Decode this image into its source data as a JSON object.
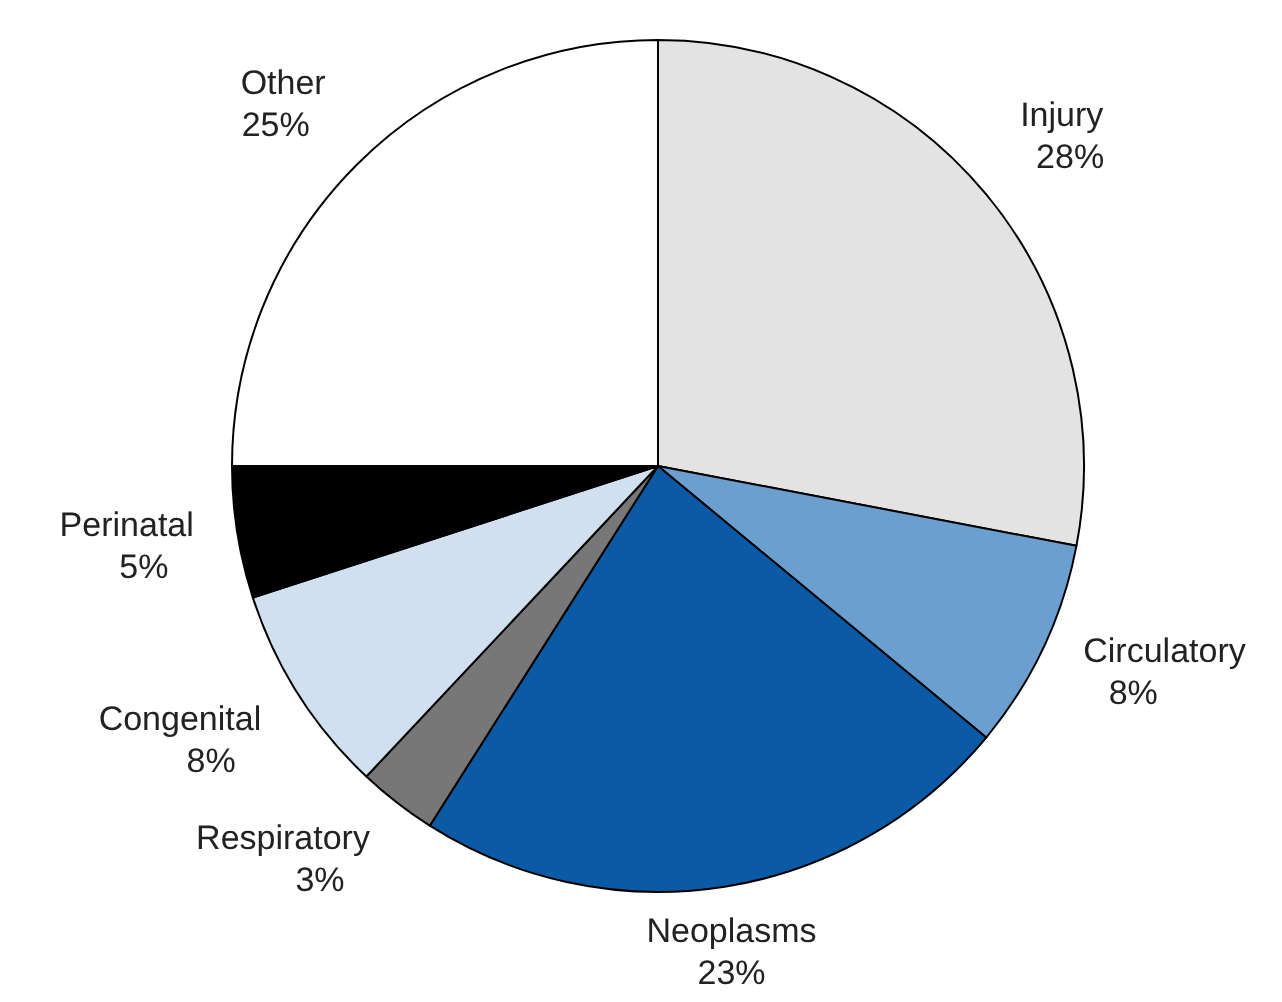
{
  "chart_data": {
    "type": "pie",
    "categories": [
      "Injury",
      "Circulatory",
      "Neoplasms",
      "Respiratory",
      "Congenital",
      "Perinatal",
      "Other"
    ],
    "values": [
      28,
      8,
      23,
      3,
      8,
      5,
      25
    ],
    "colors": [
      "#e3e3e3",
      "#6a9fcf",
      "#0a5aa5",
      "#777777",
      "#d0e0ef",
      "#000000",
      "#ffffff"
    ],
    "value_labels": [
      "28%",
      "8%",
      "23%",
      "3%",
      "8%",
      "5%",
      "25%"
    ]
  }
}
